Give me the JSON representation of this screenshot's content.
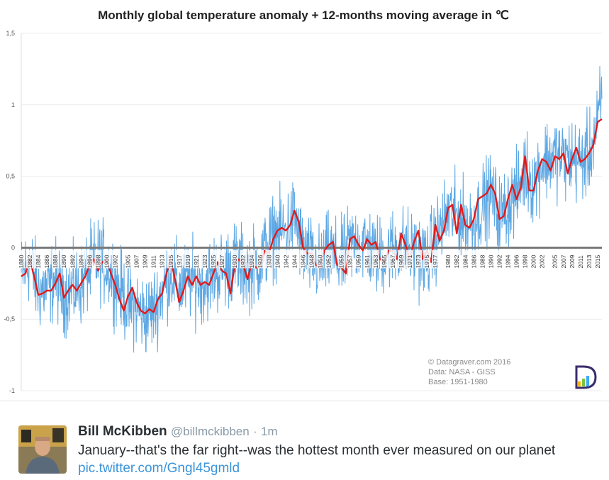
{
  "chart_data": {
    "type": "line",
    "title": "Monthly global temperature anomaly + 12-months moving average in ℃",
    "ylim": [
      -1,
      1.5
    ],
    "xlim": [
      1880,
      2016
    ],
    "y_ticks": [
      "1,5",
      "1",
      "0,5",
      "0",
      "-0,5",
      "-1"
    ],
    "y_tick_values": [
      1.5,
      1,
      0.5,
      0,
      -0.5,
      -1
    ],
    "x_ticks": [
      "1880",
      "1882",
      "1884",
      "1886",
      "1888",
      "1890",
      "1892",
      "1894",
      "1896",
      "1898",
      "1900",
      "1902",
      "1905",
      "1907",
      "1909",
      "1911",
      "1913",
      "1915",
      "1917",
      "1919",
      "1921",
      "1923",
      "1925",
      "1927",
      "1930",
      "1932",
      "1934",
      "1936",
      "1938",
      "1940",
      "1942",
      "1944",
      "1946",
      "1948",
      "1950",
      "1952",
      "1955",
      "1957",
      "1959",
      "1961",
      "1963",
      "1965",
      "1967",
      "1969",
      "1971",
      "1973",
      "1975",
      "1977",
      "1980",
      "1982",
      "1984",
      "1986",
      "1988",
      "1990",
      "1992",
      "1994",
      "1996",
      "1998",
      "2000",
      "2002",
      "2005",
      "2007",
      "2009",
      "2011",
      "2013",
      "2015"
    ],
    "x_tick_values": [
      1880,
      1882,
      1884,
      1886,
      1888,
      1890,
      1892,
      1894,
      1896,
      1898,
      1900,
      1902,
      1905,
      1907,
      1909,
      1911,
      1913,
      1915,
      1917,
      1919,
      1921,
      1923,
      1925,
      1927,
      1930,
      1932,
      1934,
      1936,
      1938,
      1940,
      1942,
      1944,
      1946,
      1948,
      1950,
      1952,
      1955,
      1957,
      1959,
      1961,
      1963,
      1965,
      1967,
      1969,
      1971,
      1973,
      1975,
      1977,
      1980,
      1982,
      1984,
      1986,
      1988,
      1990,
      1992,
      1994,
      1996,
      1998,
      2000,
      2002,
      2005,
      2007,
      2009,
      2011,
      2013,
      2015
    ],
    "grid": true,
    "series": [
      {
        "color": "#4a9de0",
        "style": "monthly",
        "amplitude": 0.14,
        "x": [
          1880,
          1882,
          1884,
          1886,
          1888,
          1890,
          1892,
          1894,
          1896,
          1898,
          1900,
          1902,
          1905,
          1907,
          1909,
          1911,
          1913,
          1915,
          1917,
          1919,
          1921,
          1923,
          1925,
          1927,
          1930,
          1932,
          1934,
          1936,
          1938,
          1940,
          1942,
          1944,
          1946,
          1948,
          1950,
          1952,
          1955,
          1957,
          1959,
          1961,
          1963,
          1965,
          1967,
          1969,
          1971,
          1973,
          1975,
          1977,
          1980,
          1982,
          1984,
          1986,
          1988,
          1990,
          1992,
          1994,
          1996,
          1998,
          2000,
          2002,
          2005,
          2007,
          2009,
          2011,
          2013,
          2015,
          2016
        ],
        "y": [
          -0.2,
          -0.1,
          -0.3,
          -0.28,
          -0.22,
          -0.32,
          -0.3,
          -0.26,
          -0.14,
          -0.08,
          -0.12,
          -0.22,
          -0.4,
          -0.42,
          -0.48,
          -0.43,
          -0.3,
          -0.16,
          -0.28,
          -0.22,
          -0.24,
          -0.24,
          -0.18,
          -0.16,
          -0.1,
          -0.14,
          -0.14,
          -0.1,
          0.05,
          0.1,
          0.12,
          0.22,
          -0.02,
          -0.08,
          -0.14,
          -0.04,
          -0.1,
          0.02,
          0.04,
          0.02,
          -0.06,
          -0.04,
          0.0,
          0.02,
          -0.02,
          -0.05,
          -0.08,
          0.05,
          0.25,
          0.22,
          0.18,
          0.18,
          0.3,
          0.38,
          0.22,
          0.3,
          0.38,
          0.55,
          0.45,
          0.6,
          0.65,
          0.62,
          0.62,
          0.6,
          0.65,
          0.85,
          1.1
        ]
      },
      {
        "color": "#e01b1b",
        "style": "moving-average",
        "x": [
          1880,
          1881,
          1882,
          1883,
          1884,
          1885,
          1886,
          1887,
          1888,
          1889,
          1890,
          1891,
          1892,
          1893,
          1894,
          1895,
          1896,
          1897,
          1898,
          1899,
          1900,
          1901,
          1902,
          1903,
          1904,
          1905,
          1906,
          1907,
          1908,
          1909,
          1910,
          1911,
          1912,
          1913,
          1914,
          1915,
          1916,
          1917,
          1918,
          1919,
          1920,
          1921,
          1922,
          1923,
          1924,
          1925,
          1926,
          1927,
          1928,
          1929,
          1930,
          1931,
          1932,
          1933,
          1934,
          1935,
          1936,
          1937,
          1938,
          1939,
          1940,
          1941,
          1942,
          1943,
          1944,
          1945,
          1946,
          1947,
          1948,
          1949,
          1950,
          1951,
          1952,
          1953,
          1954,
          1955,
          1956,
          1957,
          1958,
          1959,
          1960,
          1961,
          1962,
          1963,
          1964,
          1965,
          1966,
          1967,
          1968,
          1969,
          1970,
          1971,
          1972,
          1973,
          1974,
          1975,
          1976,
          1977,
          1978,
          1979,
          1980,
          1981,
          1982,
          1983,
          1984,
          1985,
          1986,
          1987,
          1988,
          1989,
          1990,
          1991,
          1992,
          1993,
          1994,
          1995,
          1996,
          1997,
          1998,
          1999,
          2000,
          2001,
          2002,
          2003,
          2004,
          2005,
          2006,
          2007,
          2008,
          2009,
          2010,
          2011,
          2012,
          2013,
          2014,
          2015,
          2016
        ],
        "y": [
          -0.2,
          -0.18,
          -0.08,
          -0.2,
          -0.33,
          -0.32,
          -0.3,
          -0.3,
          -0.25,
          -0.18,
          -0.35,
          -0.3,
          -0.26,
          -0.3,
          -0.25,
          -0.2,
          -0.12,
          -0.08,
          -0.16,
          -0.1,
          -0.08,
          -0.18,
          -0.26,
          -0.36,
          -0.44,
          -0.34,
          -0.28,
          -0.38,
          -0.44,
          -0.46,
          -0.43,
          -0.45,
          -0.36,
          -0.32,
          -0.18,
          -0.08,
          -0.22,
          -0.38,
          -0.3,
          -0.2,
          -0.26,
          -0.2,
          -0.26,
          -0.24,
          -0.26,
          -0.18,
          -0.1,
          -0.16,
          -0.18,
          -0.32,
          -0.12,
          -0.08,
          -0.12,
          -0.22,
          -0.1,
          -0.14,
          -0.12,
          -0.02,
          -0.04,
          0.06,
          0.12,
          0.14,
          0.12,
          0.16,
          0.26,
          0.18,
          0.0,
          -0.04,
          -0.04,
          -0.12,
          -0.14,
          -0.02,
          0.02,
          0.04,
          -0.12,
          -0.14,
          -0.18,
          0.06,
          0.08,
          0.02,
          -0.02,
          0.06,
          0.02,
          0.04,
          -0.08,
          -0.1,
          -0.02,
          -0.02,
          -0.08,
          0.1,
          0.02,
          -0.08,
          0.04,
          0.12,
          -0.08,
          -0.02,
          -0.1,
          0.16,
          0.05,
          0.12,
          0.28,
          0.3,
          0.1,
          0.3,
          0.16,
          0.14,
          0.2,
          0.34,
          0.36,
          0.38,
          0.44,
          0.38,
          0.2,
          0.22,
          0.34,
          0.44,
          0.34,
          0.42,
          0.64,
          0.4,
          0.4,
          0.54,
          0.62,
          0.6,
          0.54,
          0.64,
          0.62,
          0.66,
          0.52,
          0.62,
          0.7,
          0.6,
          0.62,
          0.66,
          0.72,
          0.88,
          0.9
        ]
      }
    ]
  },
  "watermark": {
    "line1": "© Datagraver.com  2016",
    "line2": "Data: NASA - GISS",
    "line3": "Base: 1951-1980"
  },
  "tweet": {
    "author_name": "Bill McKibben",
    "author_handle": "@billmckibben",
    "separator": "·",
    "time": "1m",
    "text": "January--that's the far right--was the hottest month ever measured on our planet",
    "link": "pic.twitter.com/Gngl45gmld"
  }
}
